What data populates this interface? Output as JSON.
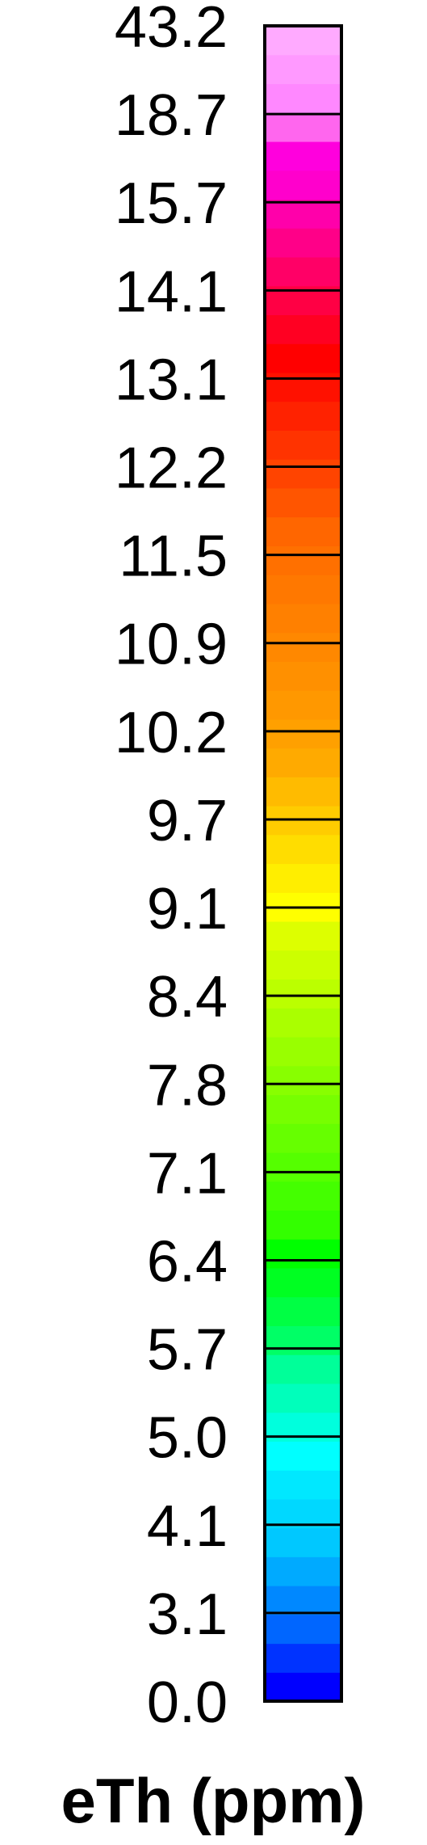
{
  "chart_data": {
    "type": "heatmap",
    "title": "eTh (ppm)",
    "xlabel": "",
    "ylabel": "",
    "tick_labels": [
      "0.0",
      "3.1",
      "4.1",
      "5.0",
      "5.7",
      "6.4",
      "7.1",
      "7.8",
      "8.4",
      "9.1",
      "9.7",
      "10.2",
      "10.9",
      "11.5",
      "12.2",
      "13.1",
      "14.1",
      "15.7",
      "18.7",
      "43.2"
    ],
    "ticks": [
      0.0,
      3.1,
      4.1,
      5.0,
      5.7,
      6.4,
      7.1,
      7.8,
      8.4,
      9.1,
      9.7,
      10.2,
      10.9,
      11.5,
      12.2,
      13.1,
      14.1,
      15.7,
      18.7,
      43.2
    ],
    "colors_bottom_to_top": [
      "#0000ff",
      "#0033ff",
      "#0066ff",
      "#0088ff",
      "#00aaff",
      "#00c8ff",
      "#00d8ff",
      "#00e8ff",
      "#00ffff",
      "#00ffdd",
      "#00ffbb",
      "#00ff99",
      "#00ff66",
      "#00ff44",
      "#00ff22",
      "#00ff00",
      "#33ff00",
      "#44ff00",
      "#55ff00",
      "#66ff00",
      "#77ff00",
      "#88ff00",
      "#99ff00",
      "#aaff00",
      "#bbff00",
      "#ccff00",
      "#ddff00",
      "#ffff00",
      "#ffee00",
      "#ffdd00",
      "#ffcc00",
      "#ffbb00",
      "#ffaa00",
      "#ffa000",
      "#ff9800",
      "#ff9000",
      "#ff8800",
      "#ff8000",
      "#ff7800",
      "#ff7000",
      "#ff6600",
      "#ff5500",
      "#ff4400",
      "#ff3300",
      "#ff2200",
      "#ff1100",
      "#ff0000",
      "#ff0022",
      "#ff0044",
      "#ff0066",
      "#ff0088",
      "#ff00aa",
      "#ff00cc",
      "#ff00dd",
      "#ff66ee",
      "#ff88ff",
      "#ff99ff",
      "#ffaaff"
    ],
    "orientation": "vertical"
  }
}
